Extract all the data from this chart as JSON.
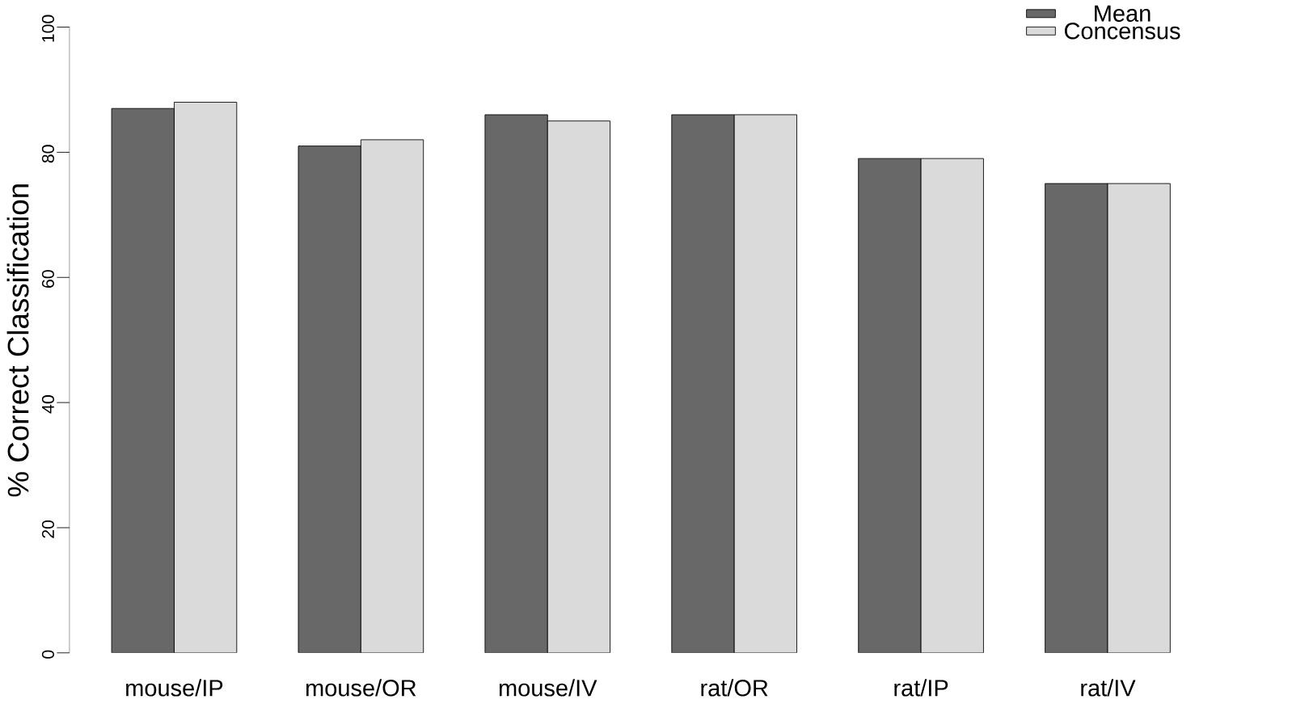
{
  "chart_data": {
    "type": "bar",
    "ylabel": "% Correct Classification",
    "categories": [
      "mouse/IP",
      "mouse/OR",
      "mouse/IV",
      "rat/OR",
      "rat/IP",
      "rat/IV"
    ],
    "series": [
      {
        "name": "Mean",
        "color": "#686868",
        "values": [
          87,
          81,
          86,
          86,
          79,
          75
        ]
      },
      {
        "name": "Concensus",
        "color": "#dadada",
        "values": [
          88,
          82,
          85,
          86,
          79,
          75
        ]
      }
    ],
    "ylim": [
      0,
      100
    ],
    "yticks": [
      0,
      20,
      40,
      60,
      80,
      100
    ],
    "legend": "top right"
  }
}
